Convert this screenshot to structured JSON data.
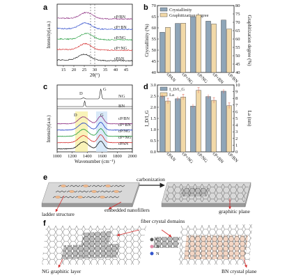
{
  "panels": {
    "a": {
      "letter": "a",
      "xlabel": "2θ(°)",
      "ylabel": "Intensity(a.u.)",
      "xticks": [
        15,
        20,
        25,
        30,
        35,
        40,
        45
      ],
      "xlim": [
        12,
        48
      ],
      "series": [
        {
          "name": "cP/BN",
          "color": "#8b2b7f"
        },
        {
          "name": "cP+BN",
          "color": "#1f3fc8"
        },
        {
          "name": "cP/NG",
          "color": "#1f9a3a"
        },
        {
          "name": "cP+NG",
          "color": "#d42a2a"
        },
        {
          "name": "cPAN",
          "color": "#111111"
        }
      ]
    },
    "b": {
      "letter": "b",
      "ylabel_left": "Crystallinity (%)",
      "ylabel_right": "Graphitization degree (%)",
      "legend": [
        "Crystallinity",
        "Graphitization degree"
      ],
      "yticks_left": [
        40,
        45,
        50,
        55,
        60,
        65,
        70
      ],
      "yticks_right": [
        40,
        45,
        50,
        55,
        60,
        65,
        70,
        75,
        80
      ],
      "colors": {
        "crystallinity": "#8ea5b8",
        "graphitization": "#f2d9a8"
      }
    },
    "c": {
      "letter": "c",
      "xlabel": "Wavenumber (cm⁻¹)",
      "ylabel": "Intensity(a.u.)",
      "xticks": [
        1000,
        1200,
        1400,
        1600,
        1800,
        2000
      ],
      "xlim": [
        1000,
        2000
      ],
      "ref_labels": [
        "NG",
        "BN"
      ],
      "band_labels": [
        "D",
        "G"
      ],
      "series": [
        {
          "name": "cP/BN",
          "color": "#8b2b7f"
        },
        {
          "name": "cP+BN",
          "color": "#1f3fc8"
        },
        {
          "name": "cP/NG",
          "color": "#1f9a3a"
        },
        {
          "name": "cP+NG",
          "color": "#d42a2a"
        },
        {
          "name": "cPAN",
          "color": "#111111"
        }
      ]
    },
    "d": {
      "letter": "d",
      "ylabel_left": "I_D/I_G",
      "ylabel_right": "La (nm)",
      "legend": [
        "I_D/I_G",
        "La"
      ],
      "yticks_left": [
        0.0,
        0.5,
        1.0,
        1.5,
        2.0,
        2.5,
        3.0
      ],
      "yticks_right": [
        0,
        1,
        2,
        3,
        4,
        5,
        6,
        7,
        8,
        9,
        10
      ],
      "colors": {
        "idig": "#8ea5b8",
        "la": "#f2d9a8",
        "err": "#e07060"
      }
    },
    "e": {
      "letter": "e",
      "labels": {
        "carbonization": "carbonization",
        "ladder": "ladder structure",
        "embedded": "embedded nanofillers",
        "graphitic": "graphitic plane"
      }
    },
    "f": {
      "letter": "f",
      "labels": {
        "fiber": "fiber crystal domains",
        "ng_layer": "NG graphitic layer",
        "bn_plane": "BN crystal plane"
      },
      "legend": [
        {
          "symbol": "C",
          "color": "#555555"
        },
        {
          "symbol": "B",
          "color": "#e38aa8"
        },
        {
          "symbol": "N",
          "color": "#3355cc"
        }
      ]
    }
  },
  "chart_data": [
    {
      "type": "line",
      "title": "",
      "xlabel": "2θ(°)",
      "ylabel": "Intensity(a.u.)",
      "xlim": [
        12,
        48
      ],
      "series": [
        {
          "name": "cP/BN",
          "peak_x": 26.0,
          "offset": 4
        },
        {
          "name": "cP+BN",
          "peak_x": 25.5,
          "offset": 3
        },
        {
          "name": "cP/NG",
          "peak_x": 26.0,
          "offset": 2
        },
        {
          "name": "cP+NG",
          "peak_x": 25.5,
          "offset": 1
        },
        {
          "name": "cPAN",
          "peak_x": 25.0,
          "offset": 0
        }
      ]
    },
    {
      "type": "bar",
      "categories": [
        "cPAN",
        "cP+NG",
        "cP/NG",
        "cP+BN",
        "cP/BN"
      ],
      "series": [
        {
          "name": "Crystallinity",
          "values": [
            58.0,
            62.0,
            65.0,
            63.0,
            63.5
          ],
          "axis": "left"
        },
        {
          "name": "Graphitization degree",
          "values": [
            67.0,
            69.5,
            74.5,
            69.0,
            66.0
          ],
          "axis": "right"
        }
      ],
      "ylabel": "Crystallinity (%)",
      "ylabel_right": "Graphitization degree (%)",
      "ylim": [
        40,
        70
      ],
      "ylim_right": [
        40,
        80
      ]
    },
    {
      "type": "line",
      "xlabel": "Wavenumber (cm⁻¹)",
      "ylabel": "Intensity(a.u.)",
      "xlim": [
        1000,
        2000
      ],
      "bands": {
        "D": 1350,
        "G": 1580
      },
      "series": [
        {
          "name": "cP/BN",
          "offset": 4
        },
        {
          "name": "cP+BN",
          "offset": 3
        },
        {
          "name": "cP/NG",
          "offset": 2
        },
        {
          "name": "cP+NG",
          "offset": 1
        },
        {
          "name": "cPAN",
          "offset": 0
        }
      ]
    },
    {
      "type": "bar",
      "categories": [
        "cPAN",
        "cP+NG",
        "cP/NG",
        "cP+BN",
        "cP/BN"
      ],
      "series": [
        {
          "name": "I_D/I_G",
          "values": [
            2.48,
            2.38,
            2.05,
            2.48,
            2.72
          ],
          "axis": "left"
        },
        {
          "name": "La",
          "values": [
            7.6,
            8.2,
            9.2,
            7.7,
            6.9
          ],
          "axis": "right"
        }
      ],
      "ylabel": "I_D/I_G",
      "ylabel_right": "La (nm)",
      "ylim": [
        0,
        3.0
      ],
      "ylim_right": [
        0,
        10
      ]
    }
  ]
}
